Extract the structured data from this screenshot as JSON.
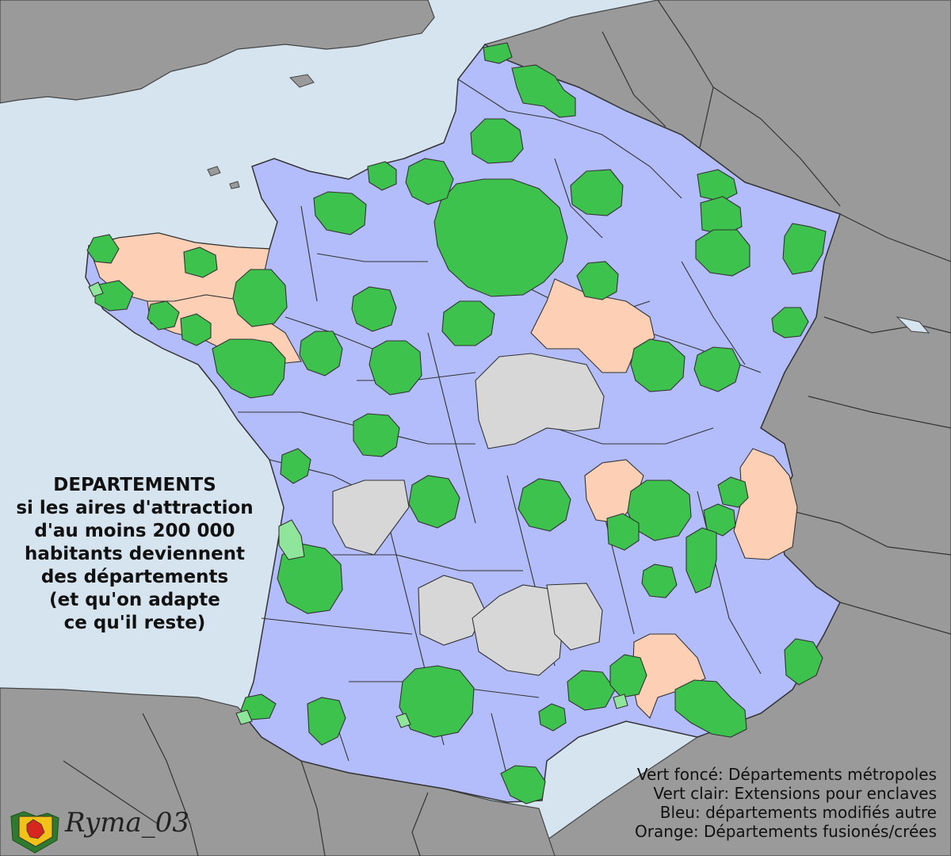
{
  "title": {
    "line1": "DEPARTEMENTS",
    "line2": "si les aires d'attraction",
    "line3": "d'au moins 200 000",
    "line4": "habitants deviennent",
    "line5": "des départements",
    "line6": "(et qu'on adapte",
    "line7": "ce qu'il reste)"
  },
  "legend": {
    "dark_green": "Vert foncé: Départements métropoles",
    "light_green": "Vert clair: Extensions pour enclaves",
    "blue": "Bleu: départements modifiés autre",
    "orange": "Orange: Départements fusionés/crées"
  },
  "signature": "Ryma_03",
  "colors": {
    "sea": "#d6e4ef",
    "foreign_land": "#9a9a9a",
    "blue_departments": "#b3bdfb",
    "dark_green_metropoles": "#3ec24e",
    "light_green_extensions": "#8fe69a",
    "orange_merged": "#fdd0b5",
    "grey_unchanged": "#d7d7d7",
    "borders": "#333333"
  }
}
